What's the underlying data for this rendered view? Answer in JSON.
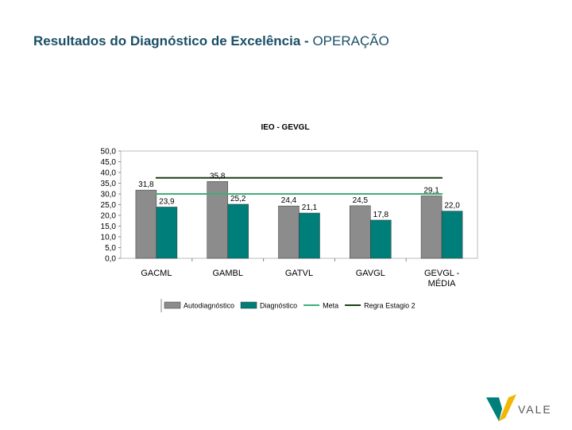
{
  "page": {
    "title_bold": "Resultados do Diagnóstico de Excelência -",
    "title_light": "OPERAÇÃO"
  },
  "chart_data": {
    "type": "bar",
    "title": "IEO - GEVGL",
    "categories": [
      "GACML",
      "GAMBL",
      "GATVL",
      "GAVGL",
      "GEVGL - MÉDIA"
    ],
    "series": [
      {
        "name": "Autodiagnóstico",
        "values": [
          31.8,
          35.8,
          24.4,
          24.5,
          29.1
        ],
        "labels": [
          "31,8",
          "35,8",
          "24,4",
          "24,5",
          "29,1"
        ],
        "color": "#8c8c8c"
      },
      {
        "name": "Diagnóstico",
        "values": [
          23.9,
          25.2,
          21.1,
          17.8,
          22.0
        ],
        "labels": [
          "23,9",
          "25,2",
          "21,1",
          "17,8",
          "22,0"
        ],
        "color": "#007f7a"
      }
    ],
    "lines": [
      {
        "name": "Meta",
        "value": 30.0,
        "color": "#3fae7a"
      },
      {
        "name": "Regra Estagio 2",
        "value": 37.5,
        "color": "#1f3f17"
      }
    ],
    "yticks": [
      0,
      5,
      10,
      15,
      20,
      25,
      30,
      35,
      40,
      45,
      50
    ],
    "ytick_labels": [
      "0,0",
      "5,0",
      "10,0",
      "15,0",
      "20,0",
      "25,0",
      "30,0",
      "35,0",
      "40,0",
      "45,0",
      "50,0"
    ],
    "ylim": [
      0,
      50
    ],
    "xlabel": "",
    "ylabel": "",
    "grid": false,
    "legend_position": "bottom"
  },
  "logo": {
    "text": "VALE",
    "colors": {
      "green": "#007f7a",
      "yellow": "#f2b705"
    }
  }
}
